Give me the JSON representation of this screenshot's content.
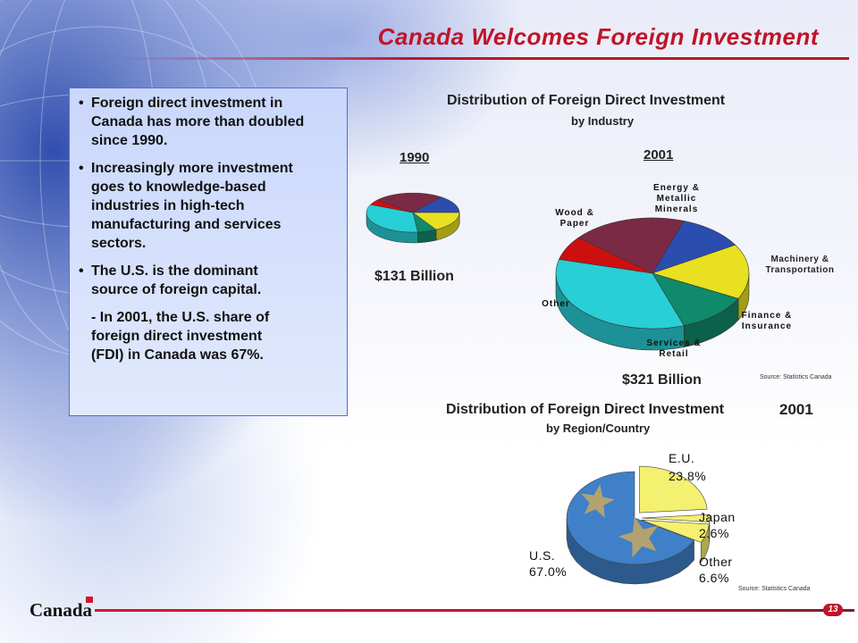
{
  "slide": {
    "title": "Canada Welcomes Foreign Investment",
    "page_number": "13",
    "footer_wordmark": "Canada"
  },
  "bullets": {
    "items": [
      {
        "lines": [
          "Foreign direct investment in",
          "Canada has more than doubled",
          "since 1990."
        ]
      },
      {
        "lines": [
          "Increasingly more investment",
          "goes to knowledge-based",
          "industries in high-tech",
          "manufacturing and services",
          "sectors."
        ]
      },
      {
        "lines": [
          "The U.S. is the dominant",
          "source of foreign capital."
        ]
      }
    ],
    "sub": [
      "- In 2001, the U.S. share of",
      "foreign direct investment",
      "(FDI) in Canada was 67%."
    ],
    "bullet_char": "•"
  },
  "industry_chart": {
    "title": "Distribution of Foreign Direct Investment",
    "subtitle": "by Industry",
    "year_1990": "1990",
    "year_2001": "2001",
    "total_1990": "$131 Billion",
    "total_2001": "$321 Billion",
    "source": "Source: Statistics Canada",
    "labels": {
      "energy": [
        "Energy &",
        "Metallic",
        "Minerals"
      ],
      "wood": [
        "Wood &",
        "Paper"
      ],
      "machinery": [
        "Machinery &",
        "Transportation"
      ],
      "finance": [
        "Finance &",
        "Insurance"
      ],
      "services": [
        "Services &",
        "Retail"
      ],
      "other": [
        "Other"
      ]
    }
  },
  "region_chart": {
    "title": "Distribution of Foreign Direct Investment",
    "year": "2001",
    "subtitle": "by Region/Country",
    "source": "Source: Statistics Canada",
    "labels": {
      "eu": [
        "E.U.",
        "23.8%"
      ],
      "japan": [
        "Japan",
        "2.6%"
      ],
      "other": [
        "Other",
        "6.6%"
      ],
      "us": [
        "U.S.",
        "67.0%"
      ]
    }
  },
  "chart_data": [
    {
      "type": "pie",
      "title": "Distribution of Foreign Direct Investment by Industry",
      "subtitle": "1990",
      "total": "$131 Billion",
      "categories": [
        "Energy & Metallic Minerals",
        "Machinery & Transportation",
        "Finance & Insurance",
        "Services & Retail",
        "Other",
        "Wood & Paper"
      ],
      "values": [
        22,
        13,
        15,
        6,
        30,
        4
      ],
      "colors": [
        "#7a2a44",
        "#2c4db0",
        "#e8e020",
        "#0f8a6a",
        "#28cfd6",
        "#cc1010"
      ]
    },
    {
      "type": "pie",
      "title": "Distribution of Foreign Direct Investment by Industry",
      "subtitle": "2001",
      "total": "$321 Billion",
      "categories": [
        "Energy & Metallic Minerals",
        "Machinery & Transportation",
        "Finance & Insurance",
        "Services & Retail",
        "Other",
        "Wood & Paper"
      ],
      "values": [
        19,
        11,
        16,
        12,
        34,
        7
      ],
      "colors": [
        "#7a2a44",
        "#2c4db0",
        "#e8e020",
        "#0f8a6a",
        "#28cfd6",
        "#cc1010"
      ]
    },
    {
      "type": "pie",
      "title": "Distribution of Foreign Direct Investment by Region/Country",
      "subtitle": "2001",
      "categories": [
        "E.U.",
        "Japan",
        "Other",
        "U.S."
      ],
      "values": [
        23.8,
        2.6,
        6.6,
        67.0
      ],
      "colors": [
        "#f4f070",
        "#f4f070",
        "#f4f070",
        "#3f80c8"
      ]
    }
  ]
}
